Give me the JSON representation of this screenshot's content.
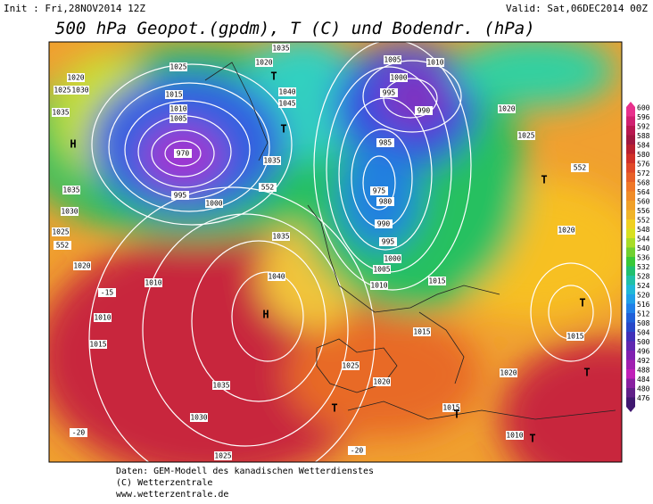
{
  "header": {
    "init": "Init : Fri,28NOV2014 12Z",
    "valid": "Valid: Sat,06DEC2014 00Z",
    "title": "500 hPa Geopot.(gpdm), T (C) und Bodendr. (hPa)"
  },
  "colorbar": {
    "levels": [
      600,
      596,
      592,
      588,
      584,
      580,
      576,
      572,
      568,
      564,
      560,
      556,
      552,
      548,
      544,
      540,
      536,
      532,
      528,
      524,
      520,
      516,
      512,
      508,
      504,
      500,
      496,
      492,
      488,
      484,
      480,
      476
    ]
  },
  "map_labels": [
    "1025",
    "1020",
    "1025",
    "1030",
    "1035",
    "H",
    "1035",
    "1030",
    "1025",
    "1020",
    "1010",
    "1015",
    "1010",
    "H",
    "1040",
    "1035",
    "1035",
    "1030",
    "1025",
    "1000",
    "995",
    "970",
    "1010",
    "1005",
    "1015",
    "1020",
    "1035",
    "1040",
    "1045",
    "1035",
    "1005",
    "1000",
    "995",
    "990",
    "1010",
    "985",
    "975",
    "980",
    "990",
    "995",
    "1000",
    "1005",
    "1010",
    "1015",
    "1020",
    "1025",
    "1020",
    "1015",
    "1020",
    "1025",
    "1020",
    "1015",
    "1015",
    "1010",
    "T",
    "T",
    "T",
    "T",
    "T",
    "T",
    "T",
    "T",
    "552",
    "552",
    "552",
    "-20",
    "-20",
    "-15"
  ],
  "footer": {
    "line1": "Daten: GEM-Modell des kanadischen Wetterdienstes",
    "line2": "(C) Wetterzentrale",
    "line3": "www.wetterzentrale.de"
  }
}
